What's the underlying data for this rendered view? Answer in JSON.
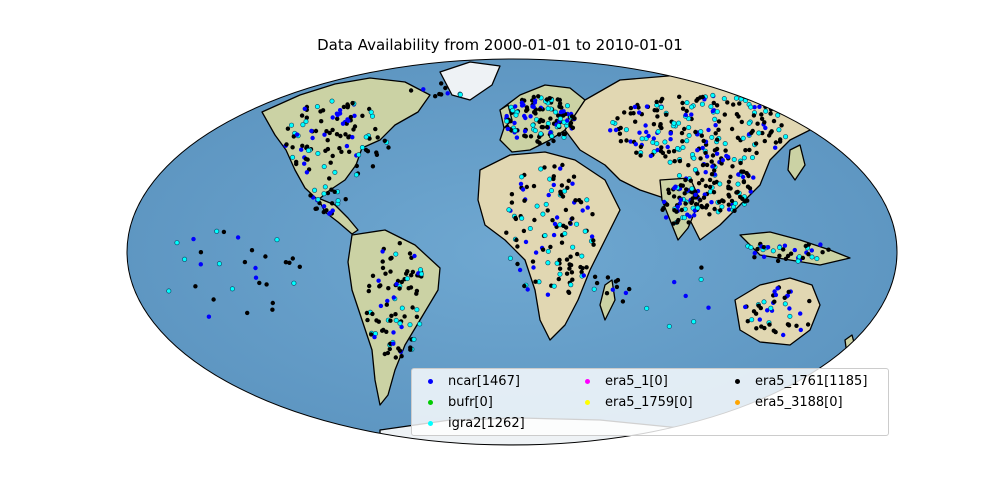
{
  "title": "Data Availability from 2000-01-01 to 2010-01-01",
  "colors": {
    "ocean": "#6fa8d1",
    "ocean_dark": "#5b93bf",
    "land": "#cbd2a4",
    "land_dry": "#e1d7b2",
    "ice": "#eef2f5",
    "outline": "#000000"
  },
  "legend": {
    "items": [
      {
        "label": "ncar[1467]",
        "color": "#0000ff"
      },
      {
        "label": "bufr[0]",
        "color": "#00cc00"
      },
      {
        "label": "igra2[1262]",
        "color": "#00ffff"
      },
      {
        "label": "era5_1[0]",
        "color": "#ff00ff"
      },
      {
        "label": "era5_1759[0]",
        "color": "#ffff00"
      },
      {
        "label": "era5_1761[1185]",
        "color": "#000000"
      },
      {
        "label": "era5_3188[0]",
        "color": "#ffa500"
      }
    ]
  }
}
